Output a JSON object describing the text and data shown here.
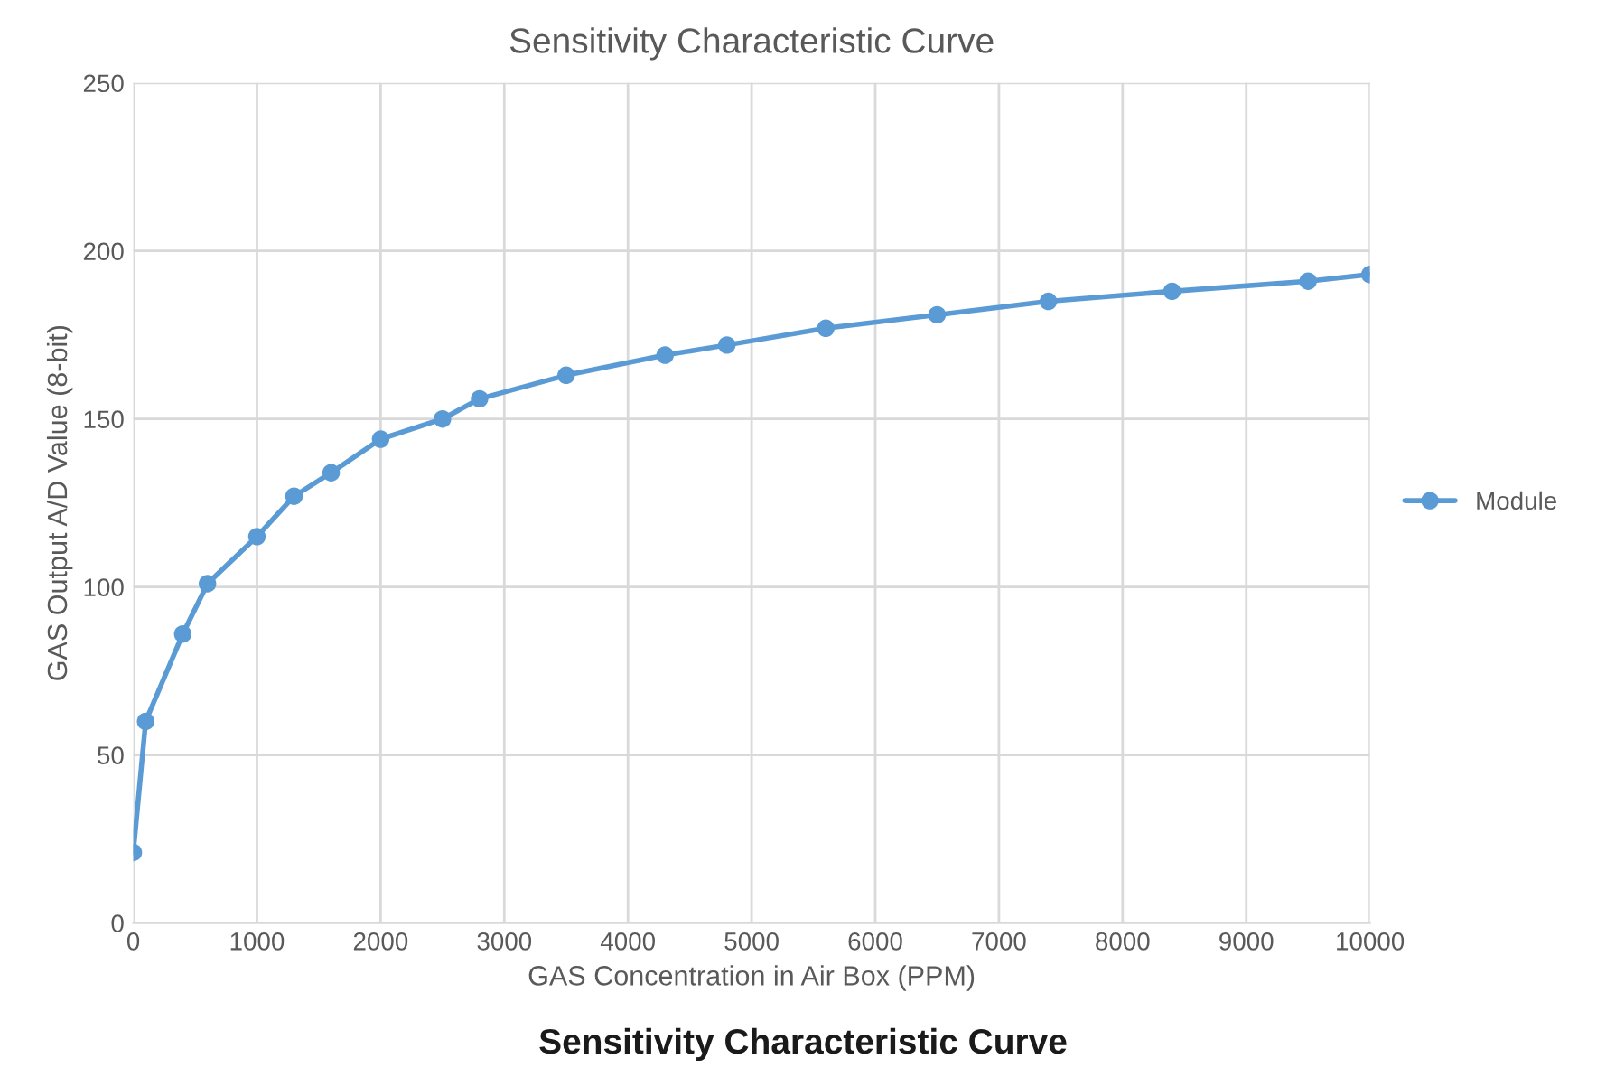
{
  "chart_data": {
    "type": "line",
    "title": "Sensitivity Characteristic Curve",
    "xlabel": "GAS Concentration in Air Box (PPM)",
    "ylabel": "GAS Output A/D Value (8-bit)",
    "annotations": [
      "Sensitivity Characteristic Curve"
    ],
    "x": [
      0,
      100,
      400,
      600,
      1000,
      1300,
      1600,
      2000,
      2500,
      2800,
      3500,
      4300,
      4800,
      5600,
      6500,
      7400,
      8400,
      9500,
      10000
    ],
    "series": [
      {
        "name": "Module",
        "color": "#5b9bd5",
        "values": [
          21,
          60,
          86,
          101,
          115,
          127,
          134,
          144,
          150,
          156,
          163,
          169,
          172,
          177,
          181,
          185,
          188,
          191,
          193
        ]
      }
    ],
    "xlim": [
      0,
      10000
    ],
    "xticks": [
      0,
      1000,
      2000,
      3000,
      4000,
      5000,
      6000,
      7000,
      8000,
      9000,
      10000
    ],
    "ylim": [
      0,
      250
    ],
    "yticks": [
      0,
      50,
      100,
      150,
      200,
      250
    ],
    "grid": true,
    "legend": "right",
    "marker": "circle",
    "line_style": "solid"
  }
}
